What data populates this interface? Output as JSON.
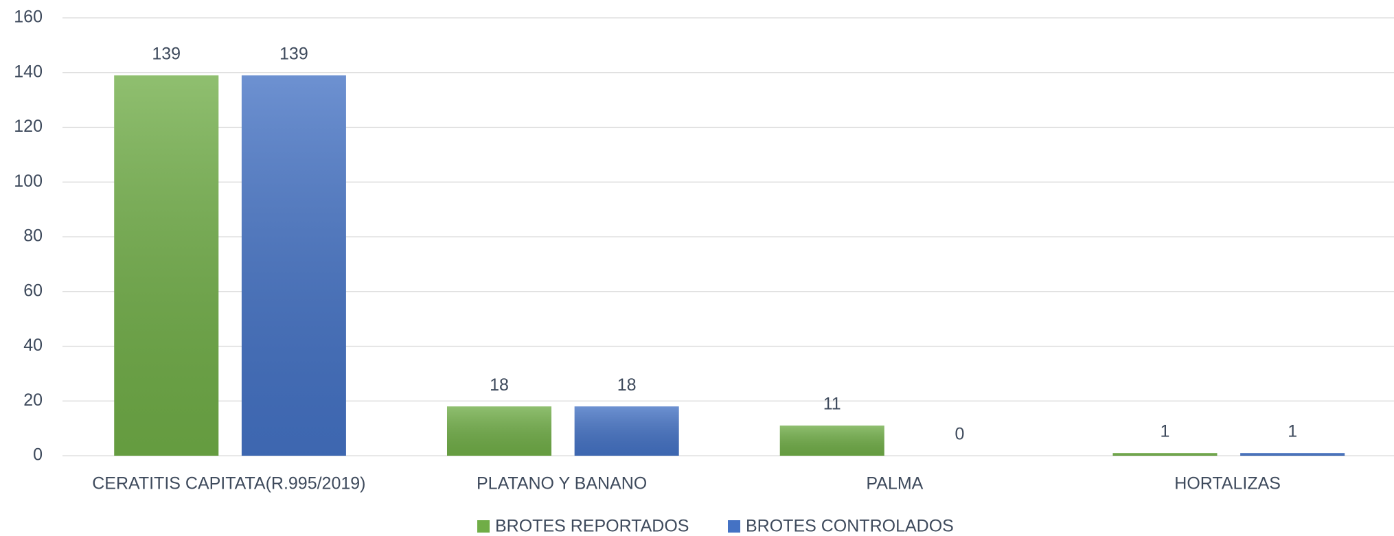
{
  "chart_data": {
    "type": "bar",
    "categories": [
      "CERATITIS CAPITATA(R.995/2019)",
      "PLATANO Y BANANO",
      "PALMA",
      "HORTALIZAS"
    ],
    "series": [
      {
        "name": "BROTES REPORTADOS",
        "color": "#70ad47",
        "values": [
          139,
          18,
          11,
          1
        ]
      },
      {
        "name": "BROTES CONTROLADOS",
        "color": "#4472c4",
        "values": [
          139,
          18,
          0,
          1
        ]
      }
    ],
    "ylim": [
      0,
      160
    ],
    "yticks": [
      0,
      20,
      40,
      60,
      80,
      100,
      120,
      140,
      160
    ],
    "grid": true,
    "legend": "bottom"
  }
}
